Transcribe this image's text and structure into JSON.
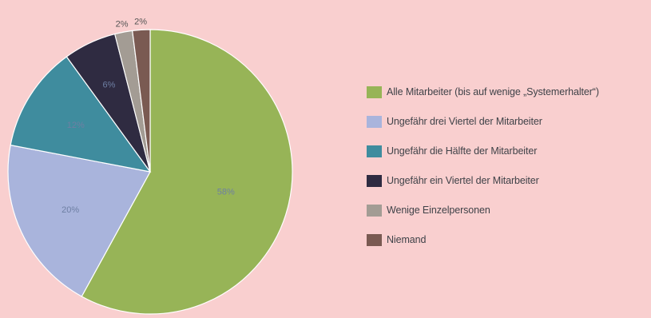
{
  "chart_data": {
    "type": "pie",
    "slices": [
      {
        "label": "Alle Mitarbeiter (bis auf wenige „Systemerhalter“)",
        "value": 58,
        "display": "58%",
        "color": "#97b457"
      },
      {
        "label": "Ungefähr drei Viertel der Mitarbeiter",
        "value": 20,
        "display": "20%",
        "color": "#a9b4dc"
      },
      {
        "label": "Ungefähr die Hälfte der Mitarbeiter",
        "value": 12,
        "display": "12%",
        "color": "#3f8c9e"
      },
      {
        "label": "Ungefähr ein Viertel der Mitarbeiter",
        "value": 6,
        "display": "6%",
        "color": "#2f2b41"
      },
      {
        "label": "Wenige Einzelpersonen",
        "value": 2,
        "display": "2%",
        "color": "#a39c94"
      },
      {
        "label": "Niemand",
        "value": 2,
        "display": "2%",
        "color": "#7a5a52"
      }
    ],
    "legend_position": "right"
  }
}
